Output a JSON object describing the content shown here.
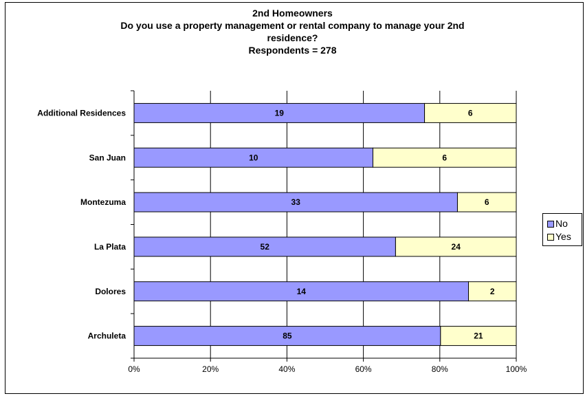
{
  "chart_data": {
    "type": "bar",
    "orientation": "horizontal",
    "stacked": "percent",
    "title_lines": [
      "2nd Homeowners",
      "Do you use a property management or rental company to manage your 2nd",
      "residence?",
      "Respondents = 278"
    ],
    "categories": [
      "Additional Residences",
      "San Juan",
      "Montezuma",
      "La Plata",
      "Dolores",
      "Archuleta"
    ],
    "series": [
      {
        "name": "No",
        "values": [
          19,
          10,
          33,
          52,
          14,
          85
        ],
        "color": "#9999ff"
      },
      {
        "name": "Yes",
        "values": [
          6,
          6,
          6,
          24,
          2,
          21
        ],
        "color": "#ffffcc"
      }
    ],
    "xticks": [
      "0%",
      "20%",
      "40%",
      "60%",
      "80%",
      "100%"
    ],
    "xlim": [
      0,
      100
    ],
    "grid": true,
    "legend_position": "right"
  }
}
